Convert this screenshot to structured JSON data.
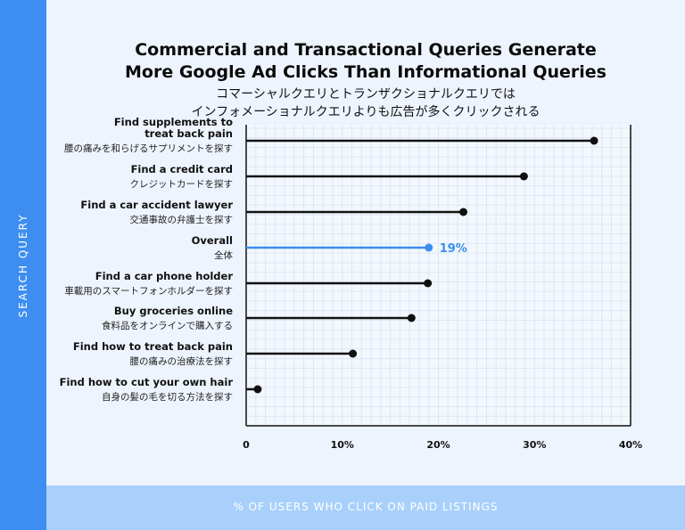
{
  "page": {
    "y_axis_title": "SEARCH QUERY",
    "x_axis_title": "% OF USERS WHO CLICK ON PAID LISTINGS",
    "title_lines": [
      "Commercial and Transactional Queries Generate",
      "More Google Ad Clicks Than Informational Queries"
    ],
    "subtitle_lines": [
      "コマーシャルクエリとトランザクショナルクエリでは",
      "インフォメーショナルクエリよりも広告が多くクリックされる"
    ]
  },
  "chart_data": {
    "type": "lollipop",
    "title": "Commercial and Transactional Queries Generate More Google Ad Clicks Than Informational Queries",
    "subtitle": "コマーシャルクエリとトランザクショナルクエリでは インフォメーショナルクエリよりも広告が多くクリックされる",
    "xlabel": "% OF USERS WHO CLICK ON PAID LISTINGS",
    "ylabel": "SEARCH QUERY",
    "xlim": [
      0,
      40
    ],
    "x_ticks": [
      "0",
      "10%",
      "20%",
      "30%",
      "40%"
    ],
    "grid": true,
    "categories": [
      {
        "label_lines": [
          "Find supplements to",
          "treat back pain"
        ],
        "ja": "腰の痛みを和らげるサプリメントを探す",
        "value": 36.2
      },
      {
        "label_lines": [
          "Find a credit card"
        ],
        "ja": "クレジットカードを探す",
        "value": 28.9
      },
      {
        "label_lines": [
          "Find a car accident lawyer"
        ],
        "ja": "交通事故の弁護士を探す",
        "value": 22.6
      },
      {
        "label_lines": [
          "Overall"
        ],
        "ja": "全体",
        "value": 19,
        "highlight": true,
        "data_label": "19%"
      },
      {
        "label_lines": [
          "Find a car phone holder"
        ],
        "ja": "車載用のスマートフォンホルダーを探す",
        "value": 18.9
      },
      {
        "label_lines": [
          "Buy groceries online"
        ],
        "ja": "食料品をオンラインで購入する",
        "value": 17.2
      },
      {
        "label_lines": [
          "Find how to treat back pain"
        ],
        "ja": "腰の痛みの治療法を探す",
        "value": 11.1
      },
      {
        "label_lines": [
          "Find how to cut your own hair"
        ],
        "ja": "自身の髪の毛を切る方法を探す",
        "value": 1.2
      }
    ],
    "colors": {
      "default": "#111111",
      "highlight": "#3d8ef0"
    }
  }
}
